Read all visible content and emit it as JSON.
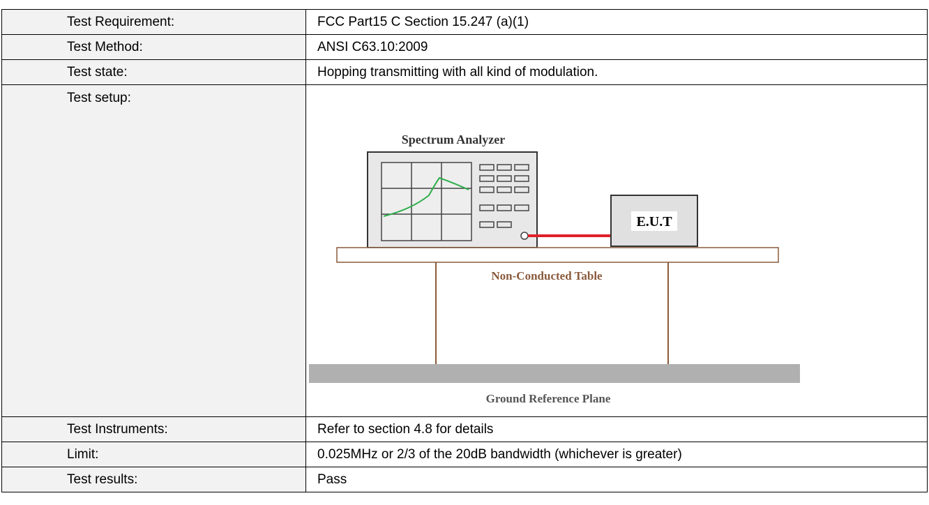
{
  "table": {
    "rows": [
      {
        "label": "Test Requirement:",
        "value": "FCC Part15 C Section 15.247 (a)(1)"
      },
      {
        "label": "Test Method:",
        "value": "ANSI C63.10:2009"
      },
      {
        "label": "Test state:",
        "value": "Hopping transmitting with all kind of modulation."
      },
      {
        "label": "Test setup:",
        "diagram": {
          "analyzer": "Spectrum Analyzer",
          "eut": "E.U.T",
          "table": "Non-Conducted Table",
          "ground": "Ground Reference Plane"
        }
      },
      {
        "label": "Test Instruments:",
        "value": "Refer to section 4.8 for details"
      },
      {
        "label": "Limit:",
        "value": "0.025MHz or 2/3 of the 20dB bandwidth (whichever is greater)"
      },
      {
        "label": "Test results:",
        "value": "Pass"
      }
    ]
  }
}
